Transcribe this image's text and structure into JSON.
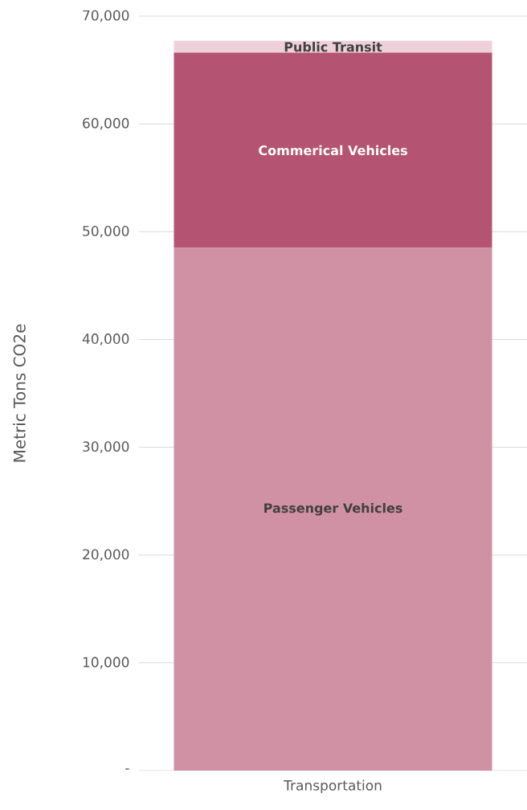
{
  "chart_data": {
    "type": "bar",
    "stacked": true,
    "ylabel": "Metric Tons CO2e",
    "categories": [
      "Transportation"
    ],
    "series": [
      {
        "name": "Passenger Vehicles",
        "color": "#d191a5",
        "values": [
          48500
        ]
      },
      {
        "name": "Commerical Vehicles",
        "color": "#b45472",
        "values": [
          18100
        ]
      },
      {
        "name": "Public Transit",
        "color": "#edd0da",
        "values": [
          1100
        ]
      }
    ],
    "ylim": [
      0,
      70000
    ],
    "yticks": [
      {
        "value": 0,
        "label": "-"
      },
      {
        "value": 10000,
        "label": "10,000"
      },
      {
        "value": 20000,
        "label": "20,000"
      },
      {
        "value": 30000,
        "label": "30,000"
      },
      {
        "value": 40000,
        "label": "40,000"
      },
      {
        "value": 50000,
        "label": "50,000"
      },
      {
        "value": 60000,
        "label": "60,000"
      },
      {
        "value": 70000,
        "label": "70,000"
      }
    ],
    "grid": "y"
  }
}
